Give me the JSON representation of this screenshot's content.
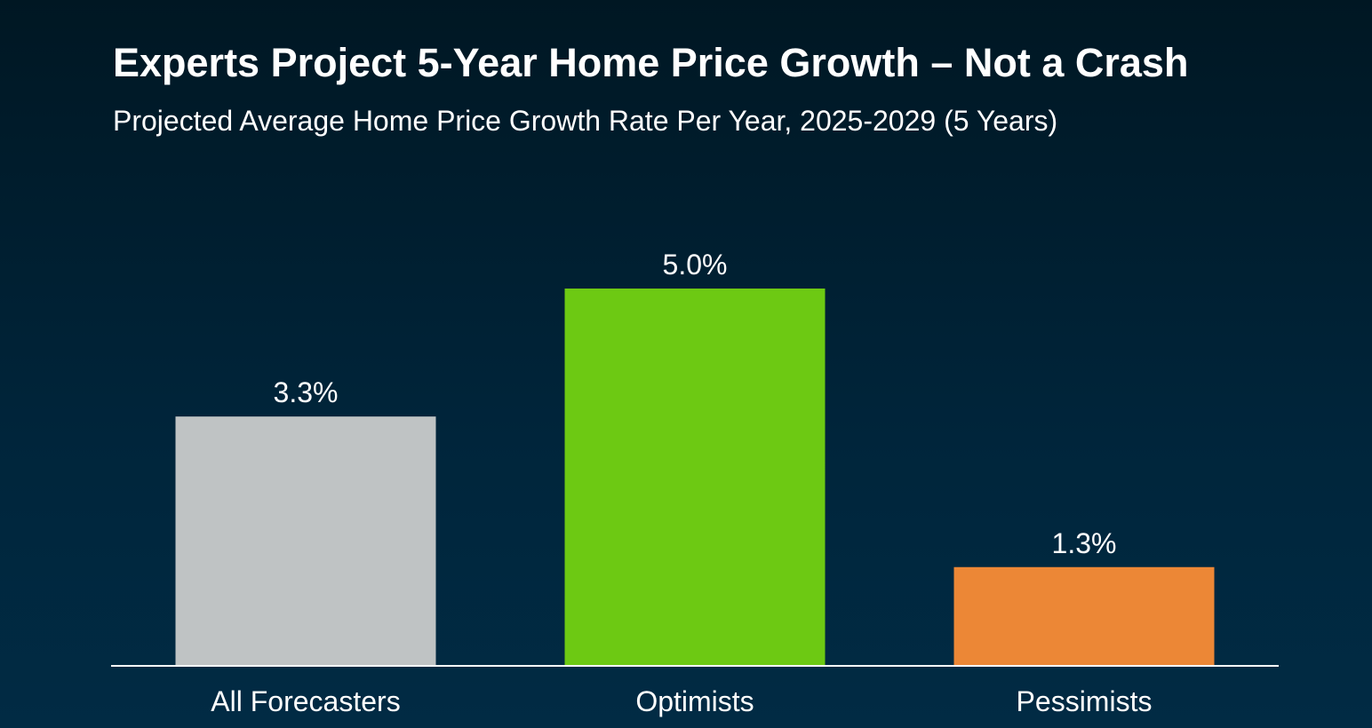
{
  "title": "Experts Project 5-Year Home Price Growth – Not a Crash",
  "subtitle": "Projected Average Home Price Growth Rate Per Year, 2025-2029 (5 Years)",
  "chart_data": {
    "type": "bar",
    "title": "Experts Project 5-Year Home Price Growth – Not a Crash",
    "subtitle": "Projected Average Home Price Growth Rate Per Year, 2025-2029 (5 Years)",
    "categories": [
      "All Forecasters",
      "Optimists",
      "Pessimists"
    ],
    "values": [
      3.3,
      5.0,
      1.3
    ],
    "value_labels": [
      "3.3%",
      "5.0%",
      "1.3%"
    ],
    "colors": [
      "#bfc3c4",
      "#6dc913",
      "#ec8736"
    ],
    "xlabel": "",
    "ylabel": "",
    "ylim": [
      0,
      5.0
    ],
    "grid": false,
    "legend": "none"
  }
}
